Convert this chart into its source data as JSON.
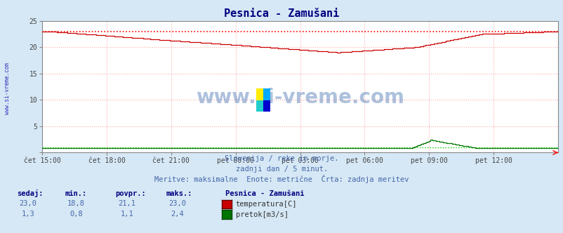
{
  "title": "Pesnica - Zamušani",
  "title_color": "#000080",
  "bg_color": "#d6e8f5",
  "plot_bg_color": "#ffffff",
  "grid_color": "#ffaaaa",
  "xlabel_ticks": [
    "čet 15:00",
    "čet 18:00",
    "čet 21:00",
    "pet 00:00",
    "pet 03:00",
    "pet 06:00",
    "pet 09:00",
    "pet 12:00"
  ],
  "yticks": [
    0,
    5,
    10,
    15,
    20,
    25
  ],
  "temp_color": "#cc0000",
  "flow_color": "#007700",
  "temp_max_line_color": "#ff0000",
  "flow_base_line_color": "#00cc00",
  "watermark": "www.si-vreme.com",
  "watermark_color": "#3366aa",
  "subtitle1": "Slovenija / reke in morje.",
  "subtitle2": "zadnji dan / 5 minut.",
  "subtitle3": "Meritve: maksimalne  Enote: metrične  Črta: zadnja meritev",
  "subtitle_color": "#4466aa",
  "legend_title": "Pesnica - Zamušani",
  "legend_items": [
    "temperatura[C]",
    "pretok[m3/s]"
  ],
  "legend_colors": [
    "#cc0000",
    "#007700"
  ],
  "stats_headers": [
    "sedaj:",
    "min.:",
    "povpr.:",
    "maks.:"
  ],
  "stats_temp": [
    "23,0",
    "18,8",
    "21,1",
    "23,0"
  ],
  "stats_flow": [
    "1,3",
    "0,8",
    "1,1",
    "2,4"
  ],
  "stats_color": "#4466aa",
  "header_color": "#000080",
  "n_points": 288,
  "temp_max": 23.0,
  "flow_max": 2.4,
  "ylim_max": 25,
  "left_label": "www.si-vreme.com",
  "left_label_color": "#0000aa"
}
